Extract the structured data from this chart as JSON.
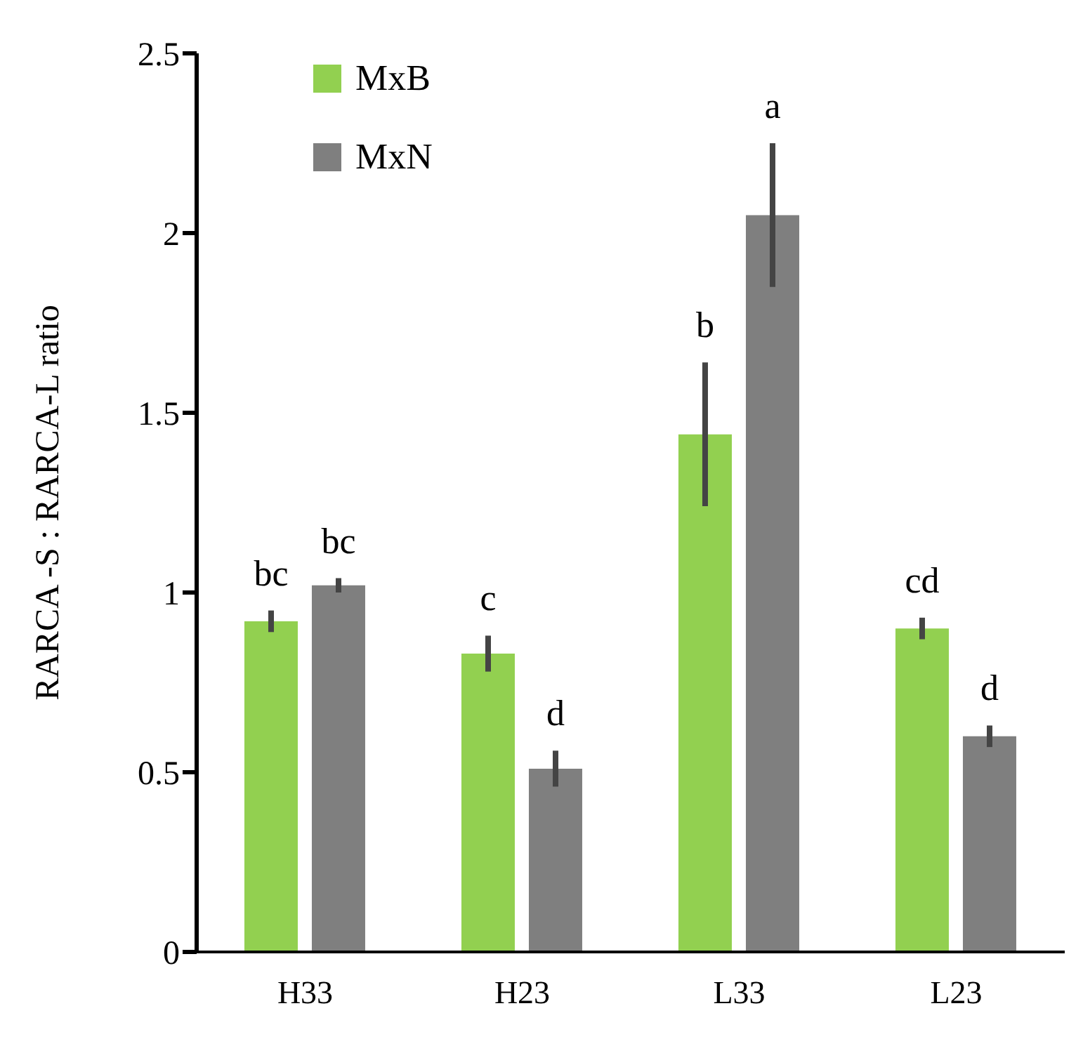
{
  "chart_data": {
    "type": "bar",
    "ylabel": "RARCA -S : RARCA-L  ratio",
    "categories": [
      "H33",
      "H23",
      "L33",
      "L23"
    ],
    "series": [
      {
        "name": "MxB",
        "color": "#92d050",
        "values": [
          0.92,
          0.83,
          1.44,
          0.9
        ],
        "errors": [
          0.03,
          0.05,
          0.2,
          0.03
        ],
        "value_labels": [
          "bc",
          "c",
          "b",
          "cd"
        ]
      },
      {
        "name": "MxN",
        "color": "#7f7f7f",
        "values": [
          1.02,
          0.51,
          2.05,
          0.6
        ],
        "errors": [
          0.02,
          0.05,
          0.2,
          0.03
        ],
        "value_labels": [
          "bc",
          "d",
          "a",
          "d"
        ]
      }
    ],
    "ylim": [
      0,
      2.5
    ],
    "yticks": [
      0,
      0.5,
      1,
      1.5,
      2,
      2.5
    ],
    "legend": "top left"
  }
}
